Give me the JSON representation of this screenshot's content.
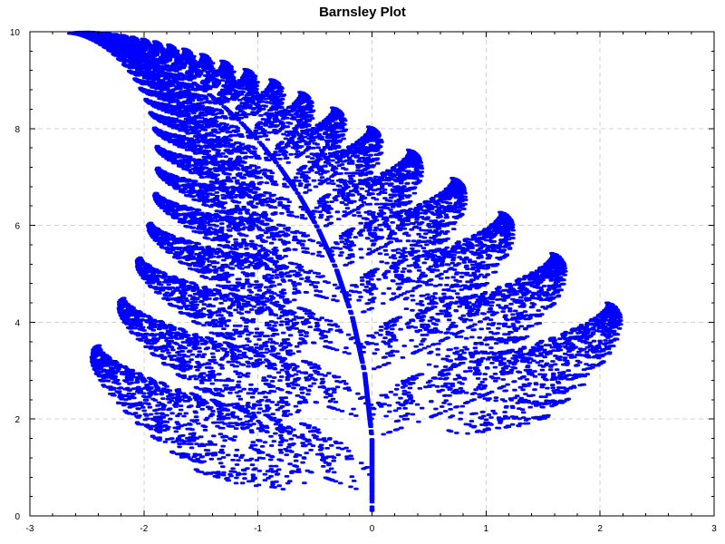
{
  "chart_data": {
    "type": "scatter",
    "title": "Barnsley Plot",
    "xlabel": "",
    "ylabel": "",
    "xlim": [
      -3,
      3
    ],
    "ylim": [
      0,
      10
    ],
    "x_ticks": [
      -3,
      -2,
      -1,
      0,
      1,
      2,
      3
    ],
    "y_ticks": [
      0,
      2,
      4,
      6,
      8,
      10
    ],
    "grid": true,
    "legend": "none",
    "point_color": "#0000ff",
    "point_count": 20000,
    "series": [
      {
        "generator": "barnsley-fern-ifs",
        "x_range": [
          -2.2,
          2.7
        ],
        "y_range": [
          0,
          10
        ]
      }
    ]
  }
}
